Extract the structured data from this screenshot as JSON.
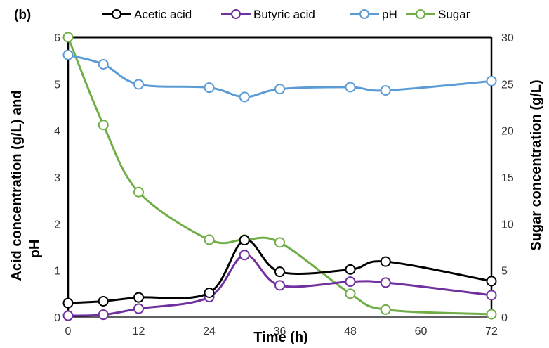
{
  "chart_data": {
    "type": "line",
    "panel_label": "(b)",
    "xlabel": "Time (h)",
    "ylabel_left_line1": "Acid concentration (g/L) and",
    "ylabel_left_line2": "pH",
    "ylabel_right": "Sugar concentration (g/L)",
    "xlim": [
      0,
      72
    ],
    "x_ticks": [
      0,
      12,
      24,
      36,
      48,
      60,
      72
    ],
    "ylim_left": [
      0,
      6
    ],
    "y_ticks_left": [
      0,
      1,
      2,
      3,
      4,
      5,
      6
    ],
    "ylim_right": [
      0,
      30
    ],
    "y_ticks_right": [
      0,
      5,
      10,
      15,
      20,
      25,
      30
    ],
    "grid": false,
    "legend_position": "top",
    "series": [
      {
        "name": "Acetic acid",
        "color": "#000000",
        "axis": "left",
        "x": [
          0,
          6,
          12,
          24,
          30,
          36,
          48,
          54,
          72
        ],
        "y": [
          0.3,
          0.34,
          0.42,
          0.52,
          1.65,
          0.97,
          1.02,
          1.19,
          0.77
        ]
      },
      {
        "name": "Butyric acid",
        "color": "#7030a0",
        "axis": "left",
        "x": [
          0,
          6,
          12,
          24,
          30,
          36,
          48,
          54,
          72
        ],
        "y": [
          0.03,
          0.05,
          0.18,
          0.43,
          1.33,
          0.68,
          0.76,
          0.74,
          0.47
        ]
      },
      {
        "name": "pH",
        "color": "#5b9bd5",
        "axis": "left",
        "x": [
          0,
          6,
          12,
          24,
          30,
          36,
          48,
          54,
          72
        ],
        "y": [
          5.62,
          5.42,
          4.99,
          4.92,
          4.72,
          4.89,
          4.93,
          4.86,
          5.06
        ]
      },
      {
        "name": "Sugar",
        "color": "#70ad47",
        "axis": "right",
        "x": [
          0,
          6,
          12,
          24,
          30,
          36,
          48,
          54,
          72
        ],
        "y": [
          30.0,
          20.6,
          13.4,
          8.3,
          8.3,
          8.0,
          2.5,
          0.8,
          0.3
        ]
      }
    ]
  }
}
